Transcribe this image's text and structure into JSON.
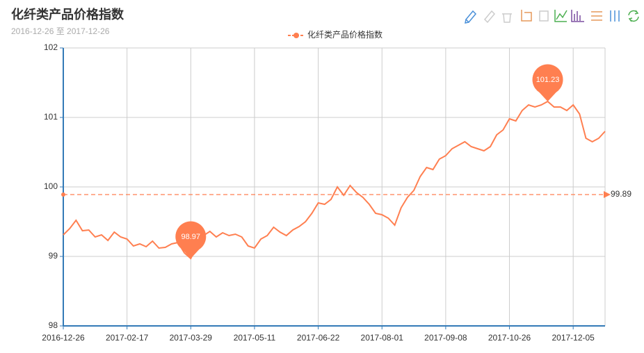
{
  "chart_data": {
    "type": "line",
    "title": "化纤类产品价格指数",
    "subtitle": "2016-12-26 至 2017-12-26",
    "categories": [
      "2016-12-26",
      null,
      null,
      null,
      null,
      null,
      null,
      null,
      null,
      null,
      "2017-02-17",
      null,
      null,
      null,
      null,
      null,
      null,
      null,
      null,
      null,
      "2017-03-29",
      null,
      null,
      null,
      null,
      null,
      null,
      null,
      null,
      null,
      "2017-05-11",
      null,
      null,
      null,
      null,
      null,
      null,
      null,
      null,
      null,
      "2017-06-22",
      null,
      null,
      null,
      null,
      null,
      null,
      null,
      null,
      null,
      "2017-08-01",
      null,
      null,
      null,
      null,
      null,
      null,
      null,
      null,
      null,
      "2017-09-08",
      null,
      null,
      null,
      null,
      null,
      null,
      null,
      null,
      null,
      "2017-10-26",
      null,
      null,
      null,
      null,
      null,
      null,
      null,
      null,
      null,
      "2017-12-05",
      null,
      null,
      null,
      null,
      null
    ],
    "series": [
      {
        "name": "化纤类产品价格指数",
        "color": "#ff7f50",
        "values": [
          99.31,
          99.4,
          99.52,
          99.37,
          99.38,
          99.28,
          99.31,
          99.23,
          99.35,
          99.28,
          99.25,
          99.15,
          99.18,
          99.14,
          99.22,
          99.12,
          99.13,
          99.18,
          99.2,
          99.05,
          98.97,
          99.15,
          99.3,
          99.36,
          99.28,
          99.34,
          99.3,
          99.32,
          99.28,
          99.15,
          99.12,
          99.25,
          99.3,
          99.42,
          99.35,
          99.3,
          99.38,
          99.43,
          99.5,
          99.62,
          99.77,
          99.75,
          99.82,
          100.0,
          99.88,
          100.02,
          99.92,
          99.85,
          99.75,
          99.62,
          99.6,
          99.55,
          99.45,
          99.7,
          99.85,
          99.95,
          100.15,
          100.28,
          100.25,
          100.4,
          100.45,
          100.55,
          100.6,
          100.65,
          100.58,
          100.55,
          100.52,
          100.58,
          100.75,
          100.82,
          100.98,
          100.95,
          101.1,
          101.18,
          101.15,
          101.18,
          101.23,
          101.15,
          101.15,
          101.1,
          101.18,
          101.05,
          100.7,
          100.65,
          100.7,
          100.8
        ]
      }
    ],
    "mark_points": [
      {
        "type": "max",
        "value": 101.23
      },
      {
        "type": "min",
        "value": 98.97
      }
    ],
    "mark_line": {
      "type": "average",
      "value": 99.89
    },
    "ylim": [
      98,
      102
    ],
    "yticks": [
      98,
      99,
      100,
      101,
      102
    ],
    "grid": true,
    "axis_color": "#337ab7"
  }
}
